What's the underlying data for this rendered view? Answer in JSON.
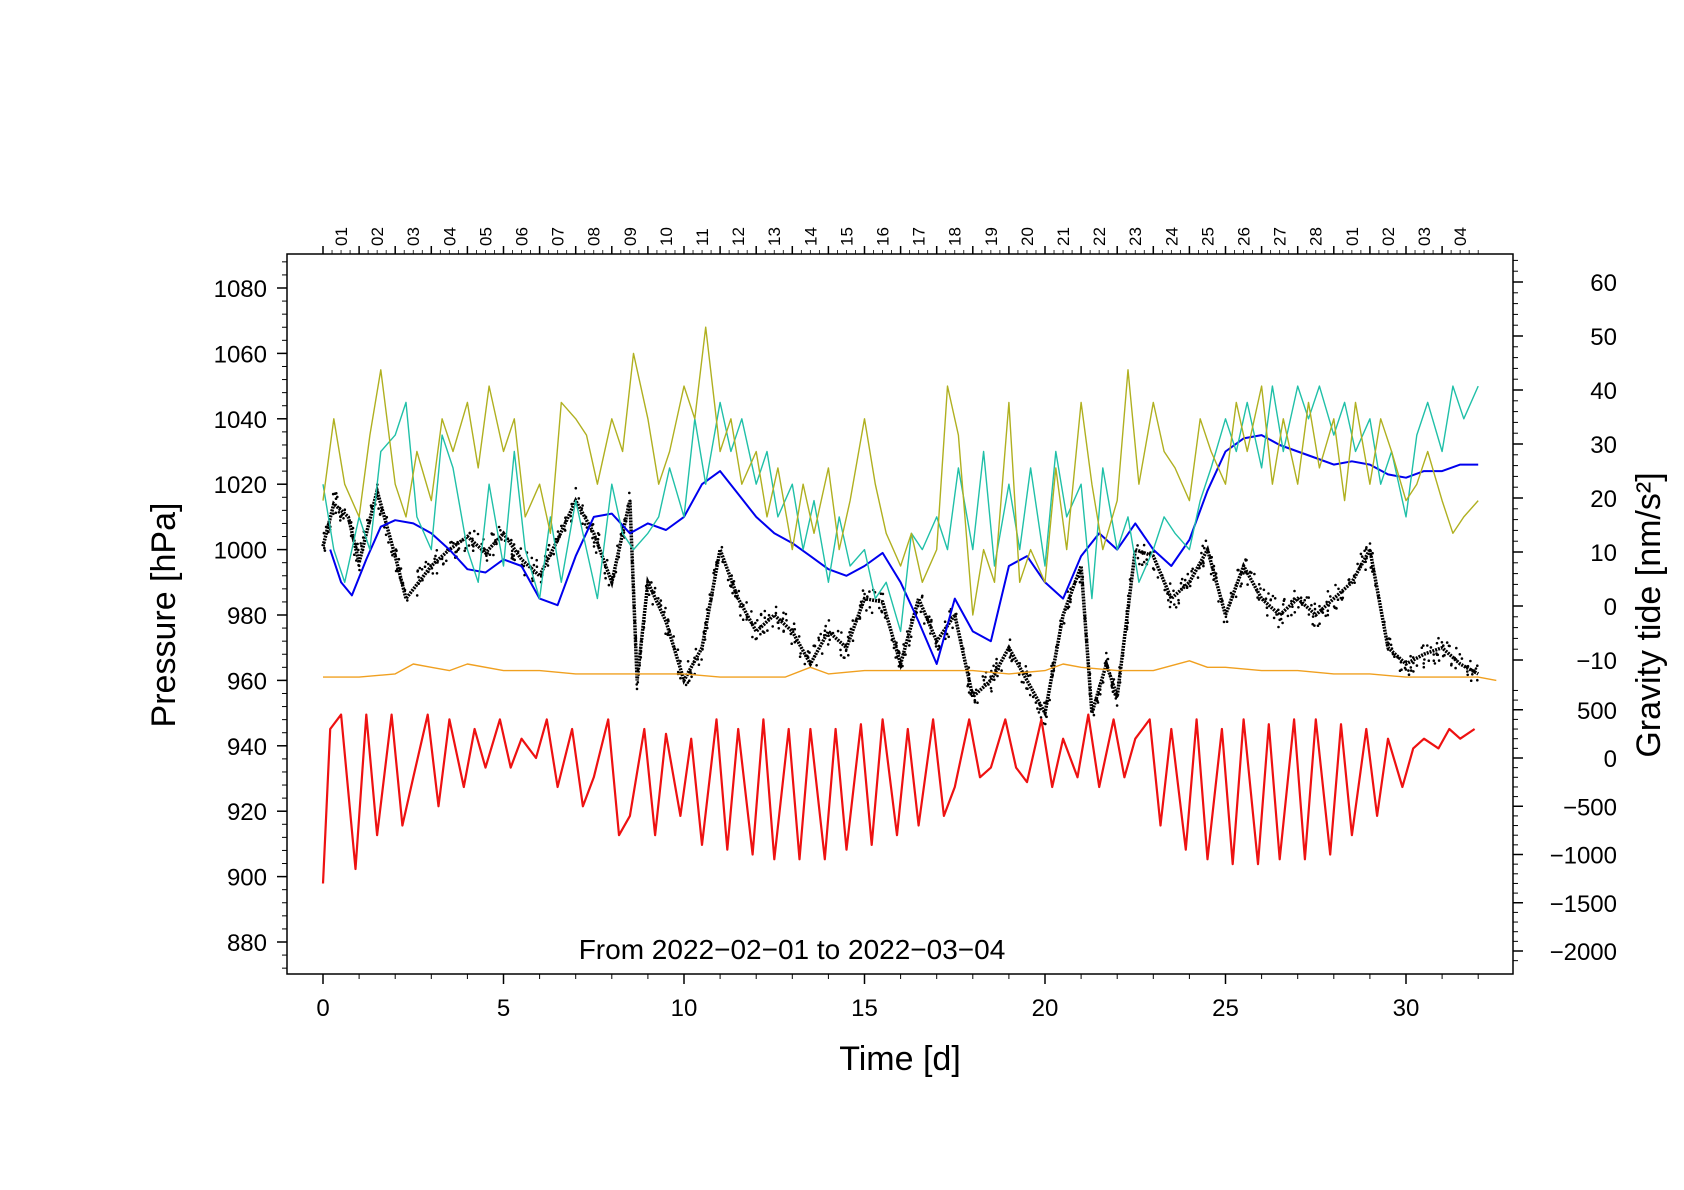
{
  "chart_data": {
    "type": "line",
    "title": "",
    "annotation": "From 2022−02−01 to 2022−03−04",
    "xlabel": "Time [d]",
    "ylabel_left": "Pressure [hPa]",
    "ylabel_right": "Gravity tide [nm/s²]",
    "xlim": [
      -1,
      32.9
    ],
    "ylim_left": [
      870,
      1090
    ],
    "x_ticks": [
      "0",
      "5",
      "10",
      "15",
      "20",
      "25",
      "30"
    ],
    "x_tick_values": [
      0,
      5,
      10,
      15,
      20,
      25,
      30
    ],
    "y_ticks_left": [
      "880",
      "900",
      "920",
      "940",
      "960",
      "980",
      "1000",
      "1020",
      "1040",
      "1060",
      "1080"
    ],
    "y_tick_values_left": [
      880,
      900,
      920,
      940,
      960,
      980,
      1000,
      1020,
      1040,
      1060,
      1080
    ],
    "y_ticks_right_upper": [
      "−10",
      "0",
      "10",
      "20",
      "30",
      "40",
      "50",
      "60"
    ],
    "y_tick_values_right_upper": [
      -10,
      0,
      10,
      20,
      30,
      40,
      50,
      60
    ],
    "right_upper_range": [
      -10,
      60
    ],
    "y_ticks_right_lower": [
      "−2000",
      "−1500",
      "−1000",
      "−500",
      "0",
      "500"
    ],
    "y_tick_values_right_lower": [
      -2000,
      -1500,
      -1000,
      -500,
      0,
      500
    ],
    "right_lower_range": [
      -2000,
      500
    ],
    "day_labels": [
      "01",
      "02",
      "03",
      "04",
      "05",
      "06",
      "07",
      "08",
      "09",
      "10",
      "11",
      "12",
      "13",
      "14",
      "15",
      "16",
      "17",
      "18",
      "19",
      "20",
      "21",
      "22",
      "23",
      "24",
      "25",
      "26",
      "27",
      "28",
      "01",
      "02",
      "03",
      "04"
    ],
    "series": [
      {
        "name": "Pressure",
        "color": "#000000",
        "style": "dots",
        "x": [
          0,
          0.3,
          0.7,
          1.0,
          1.5,
          2.0,
          2.3,
          3.0,
          3.5,
          4.0,
          4.5,
          5.0,
          5.5,
          6.0,
          6.5,
          7.0,
          7.5,
          8.0,
          8.5,
          8.7,
          9.0,
          9.5,
          10.0,
          10.5,
          11.0,
          11.5,
          12.0,
          12.5,
          13.0,
          13.5,
          14.0,
          14.5,
          15.0,
          15.5,
          16.0,
          16.5,
          17.0,
          17.5,
          18.0,
          18.5,
          19.0,
          19.5,
          20.0,
          20.5,
          21.0,
          21.3,
          21.7,
          22.0,
          22.5,
          23.0,
          23.5,
          24.0,
          24.5,
          25.0,
          25.5,
          26.0,
          26.5,
          27.0,
          27.5,
          28.0,
          28.5,
          29.0,
          29.5,
          30.0,
          30.5,
          31.0,
          31.5,
          32.0
        ],
        "values": [
          1001,
          1014,
          1010,
          996,
          1018,
          998,
          985,
          995,
          1000,
          1004,
          999,
          1005,
          997,
          992,
          1003,
          1015,
          1005,
          990,
          1015,
          960,
          990,
          978,
          960,
          970,
          1000,
          985,
          975,
          980,
          975,
          965,
          975,
          970,
          985,
          984,
          965,
          985,
          972,
          980,
          955,
          960,
          970,
          960,
          950,
          980,
          995,
          950,
          965,
          955,
          1000,
          998,
          985,
          990,
          1000,
          980,
          995,
          985,
          980,
          985,
          980,
          985,
          990,
          1000,
          970,
          965,
          968,
          970,
          965,
          962
        ]
      },
      {
        "name": "Pressure model (blue)",
        "color": "#0000ee",
        "style": "line",
        "x": [
          0.2,
          0.5,
          0.8,
          1.2,
          1.6,
          2.0,
          2.5,
          3.0,
          3.5,
          4.0,
          4.5,
          5.0,
          5.5,
          6.0,
          6.5,
          7.0,
          7.5,
          8.0,
          8.5,
          9.0,
          9.5,
          10.0,
          10.5,
          11.0,
          11.5,
          12.0,
          12.5,
          13.0,
          13.5,
          14.0,
          14.5,
          15.0,
          15.5,
          16.0,
          16.5,
          17.0,
          17.5,
          18.0,
          18.5,
          19.0,
          19.5,
          20.0,
          20.5,
          21.0,
          21.5,
          22.0,
          22.5,
          23.0,
          23.5,
          24.0,
          24.5,
          25.0,
          25.5,
          26.0,
          26.5,
          27.0,
          27.5,
          28.0,
          28.5,
          29.0,
          29.5,
          30.0,
          30.5,
          31.0,
          31.5,
          32.0
        ],
        "values": [
          1000,
          990,
          986,
          997,
          1007,
          1009,
          1008,
          1005,
          1000,
          994,
          993,
          997,
          995,
          985,
          983,
          998,
          1010,
          1011,
          1005,
          1008,
          1006,
          1010,
          1020,
          1024,
          1017,
          1010,
          1005,
          1002,
          998,
          994,
          992,
          995,
          999,
          990,
          978,
          965,
          985,
          975,
          972,
          995,
          998,
          990,
          985,
          998,
          1005,
          1000,
          1008,
          1000,
          995,
          1003,
          1018,
          1030,
          1034,
          1035,
          1032,
          1030,
          1028,
          1026,
          1027,
          1026,
          1023,
          1022,
          1024,
          1024,
          1026,
          1026
        ]
      },
      {
        "name": "Teal",
        "color": "#20c0a8",
        "style": "line",
        "x": [
          0,
          0.3,
          0.6,
          1.0,
          1.3,
          1.6,
          2.0,
          2.3,
          2.6,
          3.0,
          3.3,
          3.6,
          4.0,
          4.3,
          4.6,
          5.0,
          5.3,
          5.6,
          6.0,
          6.3,
          6.6,
          7.0,
          7.3,
          7.6,
          8.0,
          8.3,
          8.6,
          9.0,
          9.3,
          9.6,
          10.0,
          10.3,
          10.6,
          11.0,
          11.3,
          11.6,
          12.0,
          12.3,
          12.6,
          13.0,
          13.3,
          13.6,
          14.0,
          14.3,
          14.6,
          15.0,
          15.3,
          15.6,
          16.0,
          16.3,
          16.6,
          17.0,
          17.3,
          17.6,
          18.0,
          18.3,
          18.6,
          19.0,
          19.3,
          19.6,
          20.0,
          20.3,
          20.6,
          21.0,
          21.3,
          21.6,
          22.0,
          22.3,
          22.6,
          23.0,
          23.3,
          23.6,
          24.0,
          24.3,
          24.6,
          25.0,
          25.3,
          25.6,
          26.0,
          26.3,
          26.6,
          27.0,
          27.3,
          27.6,
          28.0,
          28.3,
          28.6,
          29.0,
          29.3,
          29.6,
          30.0,
          30.3,
          30.6,
          31.0,
          31.3,
          31.6,
          32.0
        ],
        "values": [
          1020,
          1000,
          990,
          1010,
          1000,
          1030,
          1035,
          1045,
          1010,
          1000,
          1035,
          1025,
          1000,
          990,
          1020,
          995,
          1030,
          1000,
          985,
          1010,
          990,
          1015,
          1000,
          985,
          1020,
          1005,
          1000,
          1005,
          1010,
          1025,
          1010,
          1040,
          1020,
          1045,
          1030,
          1040,
          1020,
          1030,
          1010,
          1020,
          1000,
          1015,
          990,
          1010,
          995,
          1000,
          985,
          990,
          975,
          1005,
          1000,
          1010,
          1000,
          1025,
          1000,
          1030,
          995,
          1020,
          1000,
          1025,
          995,
          1030,
          1010,
          1020,
          985,
          1025,
          1000,
          1010,
          990,
          1000,
          1010,
          1005,
          1000,
          1015,
          1025,
          1040,
          1030,
          1045,
          1025,
          1050,
          1030,
          1050,
          1040,
          1050,
          1035,
          1045,
          1030,
          1040,
          1020,
          1030,
          1010,
          1035,
          1045,
          1030,
          1050,
          1040,
          1050
        ]
      },
      {
        "name": "Olive",
        "color": "#b0b020",
        "style": "line",
        "x": [
          0,
          0.3,
          0.6,
          1.0,
          1.3,
          1.6,
          2.0,
          2.3,
          2.6,
          3.0,
          3.3,
          3.6,
          4.0,
          4.3,
          4.6,
          5.0,
          5.3,
          5.6,
          6.0,
          6.3,
          6.6,
          7.0,
          7.3,
          7.6,
          8.0,
          8.3,
          8.6,
          9.0,
          9.3,
          9.6,
          10.0,
          10.3,
          10.6,
          11.0,
          11.3,
          11.6,
          12.0,
          12.3,
          12.6,
          13.0,
          13.3,
          13.6,
          14.0,
          14.3,
          14.6,
          15.0,
          15.3,
          15.6,
          16.0,
          16.3,
          16.6,
          17.0,
          17.3,
          17.6,
          18.0,
          18.3,
          18.6,
          19.0,
          19.3,
          19.6,
          20.0,
          20.3,
          20.6,
          21.0,
          21.3,
          21.6,
          22.0,
          22.3,
          22.6,
          23.0,
          23.3,
          23.6,
          24.0,
          24.3,
          24.6,
          25.0,
          25.3,
          25.6,
          26.0,
          26.3,
          26.6,
          27.0,
          27.3,
          27.6,
          28.0,
          28.3,
          28.6,
          29.0,
          29.3,
          29.6,
          30.0,
          30.3,
          30.6,
          31.0,
          31.3,
          31.6,
          32.0
        ],
        "values": [
          1015,
          1040,
          1020,
          1010,
          1035,
          1055,
          1020,
          1010,
          1030,
          1015,
          1040,
          1030,
          1045,
          1025,
          1050,
          1030,
          1040,
          1010,
          1020,
          1005,
          1045,
          1040,
          1035,
          1020,
          1040,
          1030,
          1060,
          1040,
          1020,
          1030,
          1050,
          1040,
          1068,
          1030,
          1040,
          1020,
          1030,
          1010,
          1025,
          1000,
          1020,
          1005,
          1025,
          1000,
          1015,
          1040,
          1020,
          1005,
          995,
          1005,
          990,
          1000,
          1050,
          1035,
          980,
          1000,
          990,
          1045,
          990,
          1000,
          990,
          1025,
          1000,
          1045,
          1020,
          1000,
          1015,
          1055,
          1020,
          1045,
          1030,
          1025,
          1015,
          1040,
          1030,
          1020,
          1045,
          1030,
          1050,
          1020,
          1040,
          1020,
          1045,
          1025,
          1040,
          1015,
          1045,
          1020,
          1040,
          1030,
          1015,
          1020,
          1030,
          1015,
          1005,
          1010,
          1015
        ]
      },
      {
        "name": "Orange",
        "color": "#f0a020",
        "style": "line",
        "x": [
          0,
          1.0,
          2.0,
          2.5,
          3.0,
          3.5,
          4.0,
          5.0,
          6.0,
          7.0,
          8.0,
          9.0,
          10.0,
          11.0,
          12.0,
          12.8,
          13.5,
          14.0,
          15.0,
          16.0,
          17.0,
          18.0,
          19.0,
          20.0,
          20.5,
          21.0,
          22.0,
          23.0,
          24.0,
          24.5,
          25.0,
          26.0,
          27.0,
          28.0,
          29.0,
          30.0,
          31.0,
          32.0,
          32.5
        ],
        "values": [
          961,
          961,
          962,
          965,
          964,
          963,
          965,
          963,
          963,
          962,
          962,
          962,
          962,
          961,
          961,
          961,
          964,
          962,
          963,
          963,
          963,
          963,
          962,
          963,
          965,
          964,
          963,
          963,
          966,
          964,
          964,
          963,
          963,
          962,
          962,
          961,
          961,
          961,
          960
        ]
      },
      {
        "name": "Gravity tide",
        "color": "#ee1111",
        "style": "line",
        "axis": "right-lower",
        "x": [
          0,
          0.2,
          0.5,
          0.9,
          1.2,
          1.5,
          1.9,
          2.2,
          2.5,
          2.9,
          3.2,
          3.5,
          3.9,
          4.2,
          4.5,
          4.9,
          5.2,
          5.5,
          5.9,
          6.2,
          6.5,
          6.9,
          7.2,
          7.5,
          7.9,
          8.2,
          8.5,
          8.9,
          9.2,
          9.5,
          9.9,
          10.2,
          10.5,
          10.9,
          11.2,
          11.5,
          11.9,
          12.2,
          12.5,
          12.9,
          13.2,
          13.5,
          13.9,
          14.2,
          14.5,
          14.9,
          15.2,
          15.5,
          15.9,
          16.2,
          16.5,
          16.9,
          17.2,
          17.5,
          17.9,
          18.2,
          18.5,
          18.9,
          19.2,
          19.5,
          19.9,
          20.2,
          20.5,
          20.9,
          21.2,
          21.5,
          21.9,
          22.2,
          22.5,
          22.9,
          23.2,
          23.5,
          23.9,
          24.2,
          24.5,
          24.9,
          25.2,
          25.5,
          25.9,
          26.2,
          26.5,
          26.9,
          27.2,
          27.5,
          27.9,
          28.2,
          28.5,
          28.9,
          29.2,
          29.5,
          29.9,
          30.2,
          30.5,
          30.9,
          31.2,
          31.5,
          31.9
        ],
        "values": [
          -1300,
          300,
          450,
          -1150,
          450,
          -800,
          450,
          -700,
          -200,
          450,
          -500,
          400,
          -300,
          300,
          -100,
          400,
          -100,
          200,
          0,
          400,
          -300,
          300,
          -500,
          -200,
          400,
          -800,
          -600,
          300,
          -800,
          250,
          -600,
          200,
          -900,
          400,
          -950,
          300,
          -1000,
          400,
          -1050,
          300,
          -1050,
          300,
          -1050,
          300,
          -950,
          350,
          -900,
          400,
          -800,
          300,
          -700,
          400,
          -600,
          -300,
          400,
          -200,
          -100,
          400,
          -100,
          -250,
          400,
          -300,
          200,
          -200,
          450,
          -300,
          400,
          -200,
          200,
          400,
          -700,
          300,
          -950,
          400,
          -1050,
          300,
          -1100,
          400,
          -1100,
          350,
          -1050,
          400,
          -1050,
          400,
          -1000,
          350,
          -800,
          300,
          -600,
          200,
          -300,
          100,
          200,
          100,
          300,
          200,
          300
        ]
      }
    ]
  }
}
